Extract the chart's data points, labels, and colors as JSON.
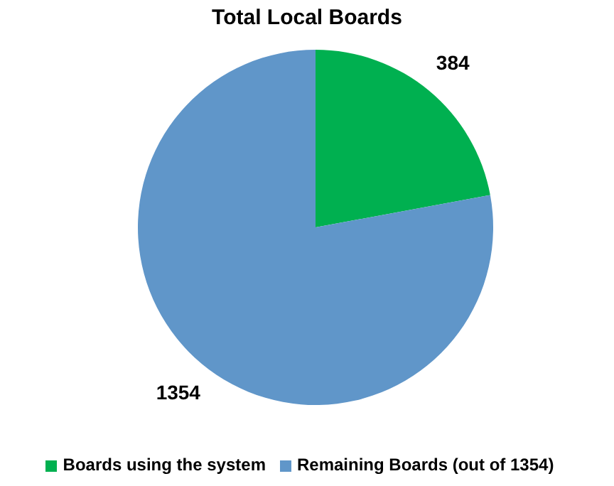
{
  "chart_data": {
    "type": "pie",
    "title": "Total Local Boards",
    "categories": [
      "Boards using the system",
      "Remaining Boards (out of 1354)"
    ],
    "values": [
      384,
      1354
    ],
    "colors": [
      "#00b050",
      "#6096c9"
    ],
    "data_labels": true,
    "legend": "bottom"
  }
}
